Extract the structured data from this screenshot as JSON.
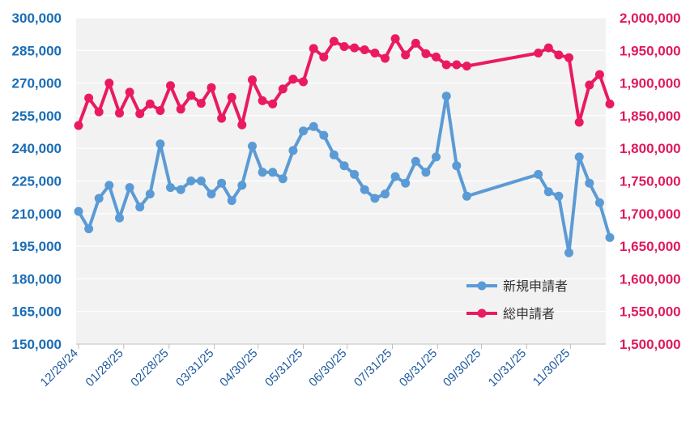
{
  "colors": {
    "left_axis": "#1a6db5",
    "right_axis": "#e0195d",
    "plot_bg": "#f2f2f2",
    "grid": "#ffffff",
    "series1": "#5b9bd5",
    "series2": "#ea1a62",
    "x_axis_text": "#1f5a9e"
  },
  "chart_data": {
    "type": "line",
    "grid": true,
    "legend_position": "bottom-right",
    "x_ticks": [
      "12/28/24",
      "01/28/25",
      "02/28/25",
      "03/31/25",
      "04/30/25",
      "05/31/25",
      "06/30/25",
      "07/31/25",
      "08/31/25",
      "09/30/25",
      "10/31/25",
      "11/30/25"
    ],
    "xlim": [
      "2024-12-28",
      "2025-12-22"
    ],
    "y_left": {
      "ticks": [
        "300,000",
        "285,000",
        "270,000",
        "255,000",
        "240,000",
        "225,000",
        "210,000",
        "195,000",
        "180,000",
        "165,000",
        "150,000"
      ],
      "range": [
        150000,
        300000
      ]
    },
    "y_right": {
      "ticks": [
        "2,000,000",
        "1,950,000",
        "1,900,000",
        "1,850,000",
        "1,800,000",
        "1,750,000",
        "1,700,000",
        "1,650,000",
        "1,600,000",
        "1,550,000",
        "1,500,000"
      ],
      "range": [
        1500000,
        2000000
      ]
    },
    "series": [
      {
        "name": "新規申請者",
        "axis": "left",
        "x": [
          "2024-12-28",
          "2025-01-04",
          "2025-01-11",
          "2025-01-18",
          "2025-01-25",
          "2025-02-01",
          "2025-02-08",
          "2025-02-15",
          "2025-02-22",
          "2025-03-01",
          "2025-03-08",
          "2025-03-15",
          "2025-03-22",
          "2025-03-29",
          "2025-04-05",
          "2025-04-12",
          "2025-04-19",
          "2025-04-26",
          "2025-05-03",
          "2025-05-10",
          "2025-05-17",
          "2025-05-24",
          "2025-05-31",
          "2025-06-07",
          "2025-06-14",
          "2025-06-21",
          "2025-06-28",
          "2025-07-05",
          "2025-07-12",
          "2025-07-19",
          "2025-07-26",
          "2025-08-02",
          "2025-08-09",
          "2025-08-16",
          "2025-08-23",
          "2025-08-30",
          "2025-09-06",
          "2025-09-13",
          "2025-09-20",
          "2025-11-08",
          "2025-11-15",
          "2025-11-22",
          "2025-11-29",
          "2025-12-06",
          "2025-12-13",
          "2025-12-20",
          "2025-12-27"
        ],
        "y": [
          211000,
          203000,
          217000,
          223000,
          208000,
          222000,
          213000,
          219000,
          242000,
          222000,
          221000,
          225000,
          225000,
          219000,
          224000,
          216000,
          223000,
          241000,
          229000,
          229000,
          226000,
          239000,
          248000,
          250000,
          246000,
          237000,
          232000,
          228000,
          221000,
          217000,
          219000,
          227000,
          224000,
          234000,
          229000,
          236000,
          264000,
          232000,
          218000,
          228000,
          220000,
          218000,
          192000,
          236000,
          224000,
          215000,
          199000
        ]
      },
      {
        "name": "総申請者",
        "axis": "right",
        "x": [
          "2024-12-28",
          "2025-01-04",
          "2025-01-11",
          "2025-01-18",
          "2025-01-25",
          "2025-02-01",
          "2025-02-08",
          "2025-02-15",
          "2025-02-22",
          "2025-03-01",
          "2025-03-08",
          "2025-03-15",
          "2025-03-22",
          "2025-03-29",
          "2025-04-05",
          "2025-04-12",
          "2025-04-19",
          "2025-04-26",
          "2025-05-03",
          "2025-05-10",
          "2025-05-17",
          "2025-05-24",
          "2025-05-31",
          "2025-06-07",
          "2025-06-14",
          "2025-06-21",
          "2025-06-28",
          "2025-07-05",
          "2025-07-12",
          "2025-07-19",
          "2025-07-26",
          "2025-08-02",
          "2025-08-09",
          "2025-08-16",
          "2025-08-23",
          "2025-08-30",
          "2025-09-06",
          "2025-09-13",
          "2025-09-20",
          "2025-11-08",
          "2025-11-15",
          "2025-11-22",
          "2025-11-29",
          "2025-12-06",
          "2025-12-13",
          "2025-12-20",
          "2025-12-27"
        ],
        "y": [
          1835000,
          1877000,
          1856000,
          1900000,
          1854000,
          1886000,
          1853000,
          1868000,
          1858000,
          1896000,
          1860000,
          1881000,
          1869000,
          1893000,
          1846000,
          1878000,
          1836000,
          1905000,
          1873000,
          1868000,
          1891000,
          1906000,
          1902000,
          1953000,
          1940000,
          1964000,
          1956000,
          1954000,
          1951000,
          1946000,
          1938000,
          1968000,
          1943000,
          1961000,
          1945000,
          1940000,
          1928000,
          1928000,
          1926000,
          1946000,
          1954000,
          1943000,
          1939000,
          1840000,
          1897000,
          1913000,
          1868000
        ]
      }
    ]
  }
}
